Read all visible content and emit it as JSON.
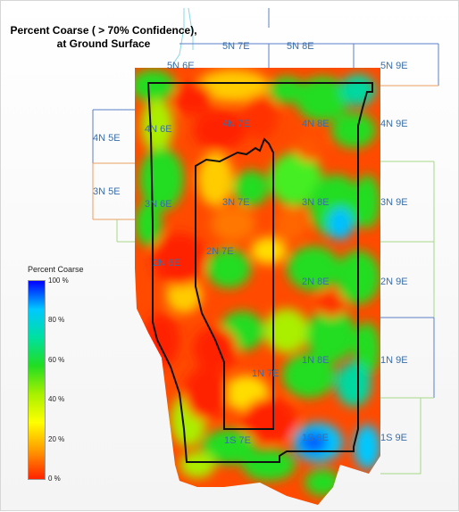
{
  "title": {
    "line1": "Percent Coarse ( > 70% Confidence),",
    "line2": "at Ground Surface"
  },
  "legend": {
    "title": "Percent Coarse",
    "ticks": [
      "100 %",
      "80 %",
      "60 %",
      "40 %",
      "20 %",
      "0 %"
    ],
    "tick_values": [
      100,
      80,
      60,
      40,
      20,
      0
    ],
    "colors": [
      "#0000ff",
      "#00c8ff",
      "#00e0a0",
      "#22dd22",
      "#a8f000",
      "#ffff00",
      "#ff9900",
      "#ff2200"
    ]
  },
  "townships": [
    "5N 6E",
    "5N 7E",
    "5N 8E",
    "5N 9E",
    "4N 5E",
    "4N 6E",
    "4N 7E",
    "4N 8E",
    "4N 9E",
    "3N 5E",
    "3N 6E",
    "3N 7E",
    "3N 8E",
    "3N 9E",
    "2N 6E",
    "2N 7E",
    "2N 8E",
    "2N 9E",
    "1N 7E",
    "1N 8E",
    "1N 9E",
    "1S 7E",
    "1S 8E",
    "1S 9E"
  ],
  "colors": {
    "township_line_blue": "#5a7fc8",
    "township_line_orange": "#e8a060",
    "township_line_green": "#a8d888",
    "township_line_cyan": "#88d8e8",
    "boundary": "#111111",
    "label": "#3a6ea8"
  }
}
